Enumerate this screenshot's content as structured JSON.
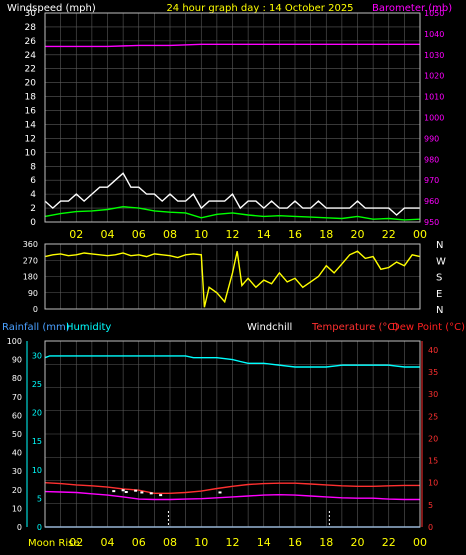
{
  "colors": {
    "bg": "#000000",
    "frame": "#bfbfbf",
    "grid": "#5a5a5a",
    "white": "#ffffff",
    "yellow": "#ffff00",
    "magenta": "#ff00ff",
    "green": "#00ff00",
    "cyan": "#00ffff",
    "blue": "#4aa0ff",
    "red": "#ff3030",
    "dewpoint": "#ff2020",
    "gust": "#ffffff",
    "rainfall": "#4aa0ff"
  },
  "title": "24 hour graph day : 14 October 2025",
  "hour_labels": [
    "02",
    "04",
    "06",
    "08",
    "10",
    "12",
    "14",
    "16",
    "18",
    "20",
    "22",
    "00"
  ],
  "chart_data": [
    {
      "type": "line",
      "id": "wind-baro",
      "left_label": "Windspeed (mph)",
      "right_label": "Barometer (mb)",
      "left_ticks": [
        "0",
        "2",
        "4",
        "6",
        "8",
        "10",
        "12",
        "14",
        "16",
        "18",
        "20",
        "22",
        "24",
        "26",
        "28",
        "30"
      ],
      "right_ticks": [
        "950",
        "960",
        "970",
        "980",
        "990",
        "1000",
        "1010",
        "1020",
        "1030",
        "1040",
        "1050"
      ],
      "ylim_left": [
        0,
        30
      ],
      "ylim_right": [
        950,
        1050
      ],
      "grid": true,
      "series": [
        {
          "role": "gust",
          "color_key": "gust",
          "x": [
            0,
            0.5,
            1,
            1.5,
            2,
            2.5,
            3,
            3.5,
            4,
            4.5,
            5,
            5.5,
            6,
            6.5,
            7,
            7.5,
            8,
            8.5,
            9,
            9.5,
            10,
            10.5,
            11,
            11.5,
            12,
            12.5,
            13,
            13.5,
            14,
            14.5,
            15,
            15.5,
            16,
            16.5,
            17,
            17.5,
            18,
            18.5,
            19,
            19.5,
            20,
            20.5,
            21,
            21.5,
            22,
            22.5,
            23,
            23.5,
            24
          ],
          "values": [
            3,
            2,
            3,
            3,
            4,
            3,
            4,
            5,
            5,
            6,
            7,
            5,
            5,
            4,
            4,
            3,
            4,
            3,
            3,
            4,
            2,
            3,
            3,
            3,
            4,
            2,
            3,
            3,
            2,
            3,
            2,
            2,
            3,
            2,
            2,
            3,
            2,
            2,
            2,
            2,
            3,
            2,
            2,
            2,
            2,
            1,
            2,
            2,
            2
          ]
        },
        {
          "role": "speed",
          "color_key": "green",
          "x": [
            0,
            1,
            2,
            3,
            4,
            5,
            6,
            7,
            8,
            9,
            10,
            11,
            12,
            13,
            14,
            15,
            16,
            17,
            18,
            19,
            20,
            21,
            22,
            23,
            24
          ],
          "values": [
            0.8,
            1.2,
            1.5,
            1.6,
            1.8,
            2.2,
            2,
            1.6,
            1.4,
            1.3,
            0.6,
            1.1,
            1.3,
            1,
            0.8,
            0.9,
            0.8,
            0.7,
            0.6,
            0.5,
            0.8,
            0.4,
            0.5,
            0.3,
            0.4
          ]
        },
        {
          "role": "barometer",
          "color_key": "magenta",
          "axis": "right",
          "x": [
            0,
            2,
            4,
            6,
            8,
            10,
            12,
            14,
            16,
            18,
            20,
            22,
            24
          ],
          "values": [
            1034,
            1034,
            1034,
            1034.5,
            1034.5,
            1035,
            1035,
            1035,
            1035,
            1035,
            1035,
            1035,
            1035
          ]
        }
      ]
    },
    {
      "type": "line",
      "id": "wind-direction",
      "left_ticks": [
        "0",
        "90",
        "180",
        "270",
        "360"
      ],
      "right_ticks": [
        "N",
        "E",
        "S",
        "W",
        "N"
      ],
      "ylim": [
        0,
        360
      ],
      "grid": true,
      "series": [
        {
          "role": "direction",
          "color_key": "yellow",
          "x": [
            0,
            0.5,
            1,
            1.5,
            2,
            2.5,
            3,
            3.5,
            4,
            4.5,
            5,
            5.5,
            6,
            6.5,
            7,
            7.5,
            8,
            8.5,
            9,
            9.5,
            10,
            10.2,
            10.5,
            11,
            11.5,
            12,
            12.3,
            12.6,
            13,
            13.5,
            14,
            14.5,
            15,
            15.5,
            16,
            16.5,
            17,
            17.5,
            18,
            18.5,
            19,
            19.5,
            20,
            20.5,
            21,
            21.5,
            22,
            22.5,
            23,
            23.5,
            24
          ],
          "values": [
            290,
            300,
            305,
            295,
            300,
            310,
            305,
            300,
            295,
            300,
            310,
            295,
            300,
            290,
            305,
            300,
            295,
            285,
            300,
            305,
            300,
            10,
            120,
            90,
            40,
            200,
            320,
            130,
            170,
            120,
            160,
            140,
            200,
            150,
            170,
            120,
            150,
            180,
            240,
            200,
            250,
            300,
            320,
            280,
            290,
            220,
            230,
            260,
            240,
            300,
            290
          ]
        }
      ]
    },
    {
      "type": "line",
      "id": "rain-humidity-temp",
      "legend": [
        {
          "label": "Rainfall (mm)",
          "color_key": "blue"
        },
        {
          "label": "Humidity",
          "color_key": "cyan"
        },
        {
          "label": "Windchill",
          "color_key": "white"
        },
        {
          "label": "Temperature (°C)",
          "color_key": "red"
        },
        {
          "label": "Dew Point (°C)",
          "color_key": "dewpoint"
        }
      ],
      "left_ticks": [
        "0",
        "10",
        "20",
        "30",
        "40",
        "50",
        "60",
        "70",
        "80",
        "90",
        "100"
      ],
      "rain_ticks": [
        "0",
        "5",
        "10",
        "15",
        "20",
        "25",
        "30"
      ],
      "right_ticks": [
        "0",
        "5",
        "10",
        "15",
        "20",
        "25",
        "30",
        "35",
        "40"
      ],
      "ylim_left": [
        0,
        100
      ],
      "ylim_right": [
        0,
        40
      ],
      "grid": true,
      "moon_label": "Moon Rise",
      "markers_x": [
        7.9,
        18.2
      ],
      "series": [
        {
          "role": "humidity",
          "color_key": "cyan",
          "x": [
            0,
            0.3,
            1,
            2,
            3,
            4,
            5,
            6,
            7,
            8,
            9,
            9.5,
            10,
            11,
            12,
            12.5,
            13,
            14,
            15,
            16,
            17,
            18,
            19,
            20,
            21,
            22,
            23,
            24
          ],
          "values": [
            91,
            92,
            92,
            92,
            92,
            92,
            92,
            92,
            92,
            92,
            92,
            91,
            91,
            91,
            90,
            89,
            88,
            88,
            87,
            86,
            86,
            86,
            87,
            87,
            87,
            87,
            86,
            86
          ]
        },
        {
          "role": "temperature",
          "color_key": "red",
          "x": [
            0,
            1,
            2,
            3,
            4,
            5,
            6,
            7,
            8,
            9,
            10,
            11,
            12,
            13,
            14,
            15,
            16,
            17,
            18,
            19,
            20,
            21,
            22,
            23,
            24
          ],
          "values": [
            10,
            9.8,
            9.5,
            9.3,
            9,
            8.6,
            8.3,
            7.6,
            7.6,
            7.8,
            8.1,
            8.7,
            9.2,
            9.6,
            9.8,
            9.9,
            9.9,
            9.7,
            9.5,
            9.3,
            9.2,
            9.2,
            9.3,
            9.4,
            9.4
          ]
        },
        {
          "role": "windchill",
          "color_key": "white",
          "x": [
            4.4,
            5,
            5.2,
            5.8,
            6.2,
            6.8,
            7.4,
            11.2
          ],
          "values": [
            8.1,
            8.3,
            7.9,
            8.2,
            7.8,
            7.6,
            7.2,
            7.8
          ]
        },
        {
          "role": "dewpoint",
          "color_key": "magenta",
          "x": [
            0,
            1,
            2,
            3,
            4,
            5,
            6,
            7,
            8,
            9,
            10,
            11,
            12,
            13,
            14,
            15,
            16,
            17,
            18,
            19,
            20,
            21,
            22,
            23,
            24
          ],
          "values": [
            8,
            7.9,
            7.8,
            7.5,
            7.2,
            6.8,
            6.3,
            6.2,
            6.2,
            6.3,
            6.4,
            6.6,
            6.8,
            7,
            7.2,
            7.3,
            7.2,
            7,
            6.8,
            6.6,
            6.5,
            6.5,
            6.3,
            6.2,
            6.2
          ]
        },
        {
          "role": "rainfall",
          "color_key": "rainfall",
          "x": [
            0,
            24
          ],
          "values": [
            0,
            0
          ]
        }
      ]
    }
  ]
}
